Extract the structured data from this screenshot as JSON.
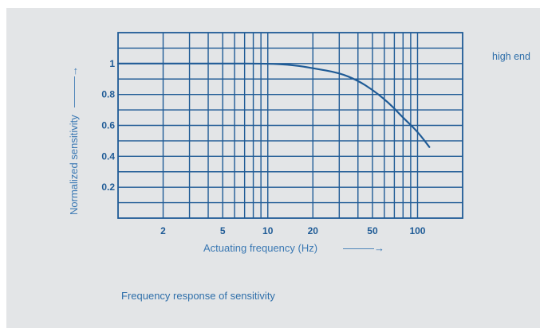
{
  "chart_data": {
    "type": "line",
    "title": "",
    "xlabel": "Actuating frequency (Hz)",
    "ylabel": "Normalized sensitivity",
    "x_scale": "log",
    "xlim": [
      1,
      200
    ],
    "ylim": [
      0,
      1.2
    ],
    "x_ticks": [
      {
        "value": 2,
        "label": "2"
      },
      {
        "value": 5,
        "label": "5"
      },
      {
        "value": 10,
        "label": "10"
      },
      {
        "value": 20,
        "label": "20"
      },
      {
        "value": 50,
        "label": "50"
      },
      {
        "value": 100,
        "label": "100"
      }
    ],
    "y_ticks": [
      {
        "value": 0.2,
        "label": "0.2"
      },
      {
        "value": 0.4,
        "label": "0.4"
      },
      {
        "value": 0.6,
        "label": "0.6"
      },
      {
        "value": 0.8,
        "label": "0.8"
      },
      {
        "value": 1,
        "label": "1"
      }
    ],
    "x_gridlines": [
      2,
      3,
      4,
      5,
      6,
      7,
      8,
      9,
      10,
      20,
      30,
      40,
      50,
      60,
      70,
      80,
      90,
      100
    ],
    "y_gridlines": [
      0.1,
      0.2,
      0.3,
      0.4,
      0.5,
      0.6,
      0.7,
      0.8,
      0.9,
      1.0,
      1.1
    ],
    "grid": true,
    "series": [
      {
        "x": [
          1,
          5,
          10,
          15,
          20,
          30,
          40,
          50,
          60,
          70,
          80,
          100,
          120
        ],
        "y": [
          1.0,
          1.0,
          1.0,
          0.99,
          0.97,
          0.94,
          0.89,
          0.83,
          0.77,
          0.71,
          0.65,
          0.56,
          0.46
        ]
      }
    ]
  },
  "labels": {
    "x_axis_arrow": "———→",
    "y_axis_arrow": "———→",
    "caption": "Frequency response of sensitivity",
    "side_note": "high end"
  },
  "colors": {
    "background": "#e3e5e7",
    "grid": "#1f5b96",
    "curve": "#1f5b96",
    "text": "#2f6faa"
  }
}
